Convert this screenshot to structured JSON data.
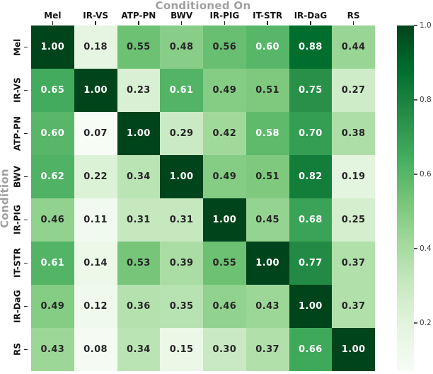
{
  "chart_data": {
    "type": "heatmap",
    "title": "Conditioned On",
    "xlabel": "Conditioned On",
    "ylabel": "Condition",
    "columns": [
      "Mel",
      "IR-VS",
      "ATP-PN",
      "BWV",
      "IR-PIG",
      "IT-STR",
      "IR-DaG",
      "RS"
    ],
    "rows": [
      "Mel",
      "IR-VS",
      "ATP-PN",
      "BWV",
      "IR-PIG",
      "IT-STR",
      "IR-DaG",
      "RS"
    ],
    "matrix": [
      [
        1.0,
        0.18,
        0.55,
        0.48,
        0.56,
        0.6,
        0.88,
        0.44
      ],
      [
        0.65,
        1.0,
        0.23,
        0.61,
        0.49,
        0.51,
        0.75,
        0.27
      ],
      [
        0.6,
        0.07,
        1.0,
        0.29,
        0.42,
        0.58,
        0.7,
        0.38
      ],
      [
        0.62,
        0.22,
        0.34,
        1.0,
        0.49,
        0.51,
        0.82,
        0.19
      ],
      [
        0.46,
        0.11,
        0.31,
        0.31,
        1.0,
        0.45,
        0.68,
        0.25
      ],
      [
        0.61,
        0.14,
        0.53,
        0.39,
        0.55,
        1.0,
        0.77,
        0.37
      ],
      [
        0.49,
        0.12,
        0.36,
        0.35,
        0.46,
        0.43,
        1.0,
        0.37
      ],
      [
        0.43,
        0.08,
        0.34,
        0.15,
        0.3,
        0.37,
        0.66,
        1.0
      ]
    ],
    "annotations": true,
    "value_decimals": 2,
    "vmin": 0.07,
    "vmax": 1.0,
    "grid": false,
    "legend_position": "right-colorbar",
    "colorbar_ticks": [
      1.0,
      0.8,
      0.6,
      0.4,
      0.2
    ],
    "colorbar_tick_labels": [
      "1.0",
      "0.8",
      "0.6",
      "0.4",
      "0.2"
    ],
    "colormap": {
      "name": "Greens",
      "anchors": [
        {
          "t": 0.0,
          "color": "#f7fcf5"
        },
        {
          "t": 0.125,
          "color": "#e5f5e0"
        },
        {
          "t": 0.25,
          "color": "#c7e9c0"
        },
        {
          "t": 0.375,
          "color": "#a1d99b"
        },
        {
          "t": 0.5,
          "color": "#74c476"
        },
        {
          "t": 0.625,
          "color": "#41ab5d"
        },
        {
          "t": 0.75,
          "color": "#238b45"
        },
        {
          "t": 0.875,
          "color": "#006d2c"
        },
        {
          "t": 1.0,
          "color": "#00441b"
        }
      ]
    },
    "colors": {
      "axis_title_gray": "#a0a0a0",
      "tick_label_color": "#141414",
      "annotation_dark": "#262626",
      "annotation_light": "#ffffff",
      "colorbar_label_color": "#3d3d3d",
      "background": "#ffffff"
    }
  }
}
